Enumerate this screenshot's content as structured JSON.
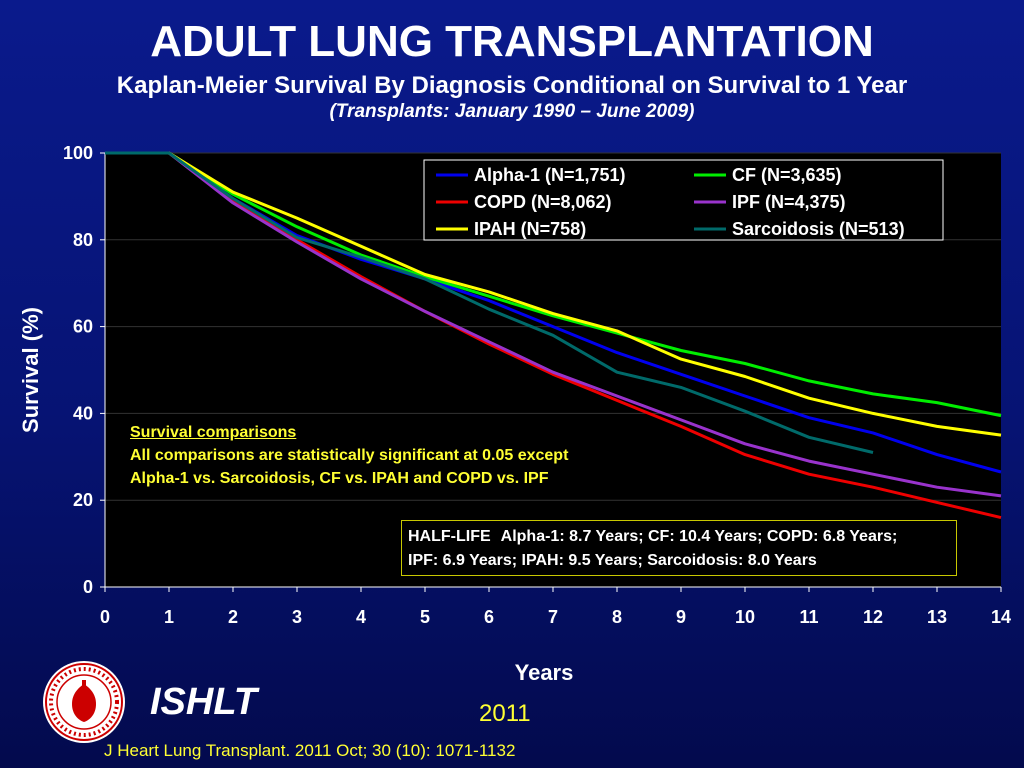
{
  "header": {
    "title": "ADULT LUNG TRANSPLANTATION",
    "subtitle": "Kaplan-Meier Survival By Diagnosis Conditional on Survival to 1 Year",
    "subtitle2": "(Transplants: January 1990 – June 2009)"
  },
  "chart_data": {
    "type": "line",
    "xlabel": "Years",
    "ylabel": "Survival (%)",
    "xlim": [
      0,
      14
    ],
    "ylim": [
      0,
      100
    ],
    "xticks": [
      0,
      1,
      2,
      3,
      4,
      5,
      6,
      7,
      8,
      9,
      10,
      11,
      12,
      13,
      14
    ],
    "yticks": [
      0,
      20,
      40,
      60,
      80,
      100
    ],
    "grid": "horizontal",
    "legend_position": "top-right",
    "series": [
      {
        "name": "Alpha-1 (N=1,751)",
        "color": "#0000ee",
        "x": [
          0,
          1,
          2,
          3,
          4,
          5,
          6,
          7,
          8,
          9,
          10,
          11,
          12,
          13,
          14
        ],
        "y": [
          100,
          100,
          89.5,
          81,
          75.5,
          71,
          66,
          60,
          54,
          49,
          44,
          39,
          35.5,
          30.5,
          26.5
        ]
      },
      {
        "name": "CF (N=3,635)",
        "color": "#00ee00",
        "x": [
          0,
          1,
          2,
          3,
          4,
          5,
          6,
          7,
          8,
          9,
          10,
          11,
          12,
          13,
          14
        ],
        "y": [
          100,
          100,
          90.5,
          83,
          76.5,
          71.5,
          67,
          62.5,
          58.5,
          54.5,
          51.5,
          47.5,
          44.5,
          42.5,
          39.5
        ]
      },
      {
        "name": "COPD (N=8,062)",
        "color": "#ee0000",
        "x": [
          0,
          1,
          2,
          3,
          4,
          5,
          6,
          7,
          8,
          9,
          10,
          11,
          12,
          13,
          14
        ],
        "y": [
          100,
          100,
          89,
          80,
          71.5,
          63.5,
          56,
          49,
          43,
          37,
          30.5,
          26,
          23,
          19.5,
          16
        ]
      },
      {
        "name": "IPF (N=4,375)",
        "color": "#9933cc",
        "x": [
          0,
          1,
          2,
          3,
          4,
          5,
          6,
          7,
          8,
          9,
          10,
          11,
          12,
          13,
          14
        ],
        "y": [
          100,
          100,
          88.5,
          79.5,
          71,
          63.5,
          56.5,
          49.5,
          44,
          38.5,
          33,
          29,
          26,
          23,
          21
        ]
      },
      {
        "name": "IPAH (N=758)",
        "color": "#ffff00",
        "x": [
          0,
          1,
          2,
          3,
          4,
          5,
          6,
          7,
          8,
          9,
          10,
          11,
          12,
          13,
          14
        ],
        "y": [
          100,
          100,
          91,
          85,
          78.5,
          72,
          68,
          63,
          59,
          52.5,
          48.5,
          43.5,
          40,
          37,
          35
        ]
      },
      {
        "name": "Sarcoidosis (N=513)",
        "color": "#006a6a",
        "x": [
          0,
          1,
          2,
          3,
          4,
          5,
          6,
          7,
          8,
          9,
          10,
          11,
          12
        ],
        "y": [
          100,
          100,
          89.5,
          80.5,
          76,
          71,
          64,
          58,
          49.5,
          46,
          40.5,
          34.5,
          31
        ]
      }
    ]
  },
  "note": {
    "heading": "Survival comparisons",
    "line1": "All comparisons are statistically significant at 0.05 except",
    "line2": "Alpha-1 vs. Sarcoidosis, CF vs. IPAH and COPD vs. IPF"
  },
  "halflife": {
    "heading": "HALF-LIFE",
    "line1": "Alpha-1: 8.7 Years; CF: 10.4 Years; COPD: 6.8 Years;",
    "line2": "IPF: 6.9 Years; IPAH: 9.5 Years; Sarcoidosis: 8.0 Years"
  },
  "footer": {
    "brand": "ISHLT",
    "year": "2011",
    "citation": "J Heart Lung Transplant. 2011 Oct; 30 (10): 1071-1132",
    "logo_icon": "ishlt-seal-icon"
  }
}
